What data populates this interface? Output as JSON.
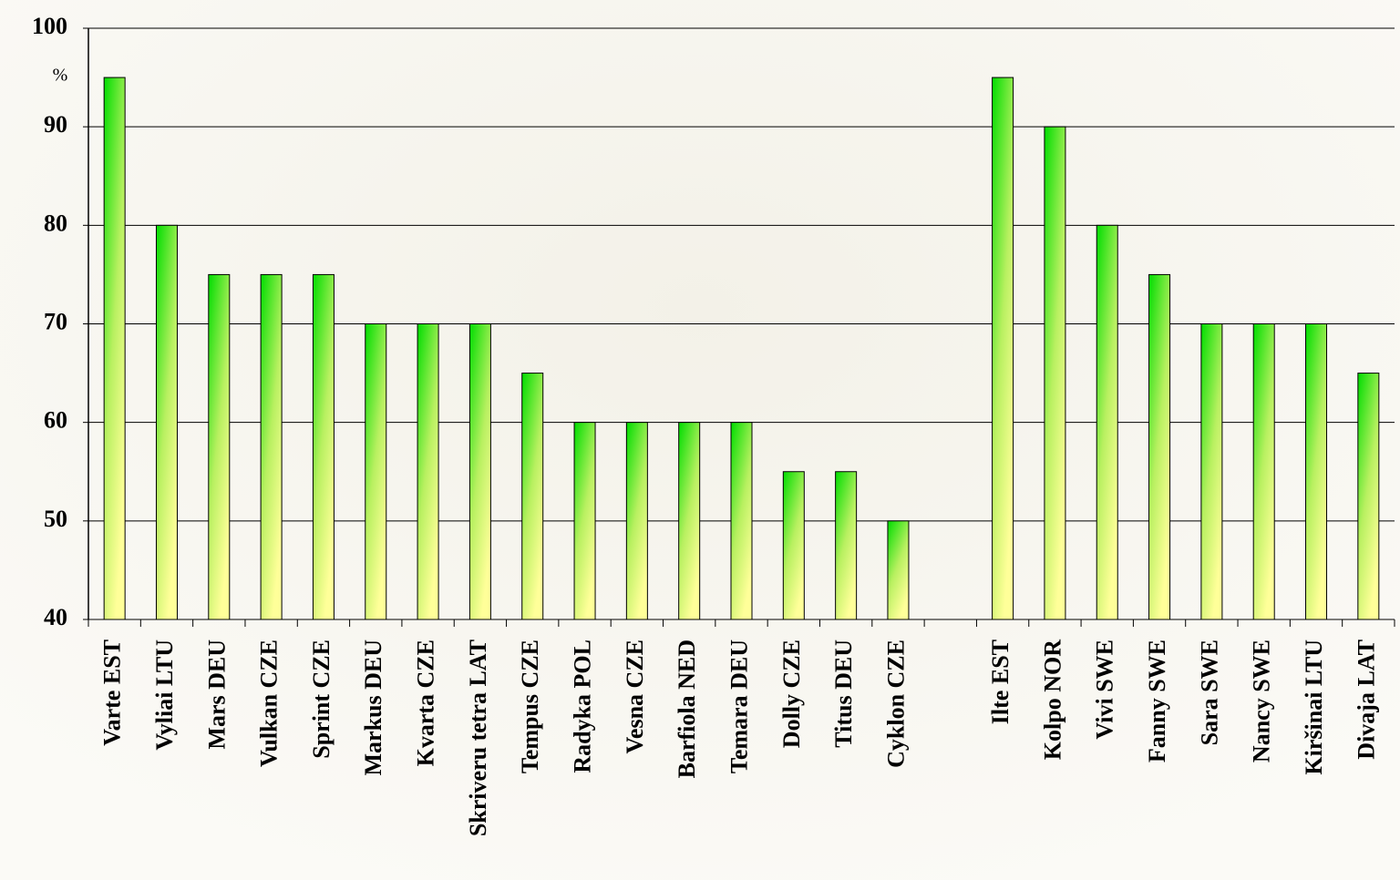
{
  "chart_data": {
    "type": "bar",
    "ylabel": "%",
    "categories": [
      "Varte EST",
      "Vyliai LTU",
      "Mars DEU",
      "Vulkan CZE",
      "Sprint CZE",
      "Markus DEU",
      "Kvarta CZE",
      "Skriveru tetra LAT",
      "Tempus CZE",
      "Radyka POL",
      "Vesna CZE",
      "Barfiola NED",
      "Temara DEU",
      "Dolly CZE",
      "Titus DEU",
      "Cyklon CZE",
      null,
      "Ilte EST",
      "Kolpo NOR",
      "Vivi SWE",
      "Fanny SWE",
      "Sara SWE",
      "Nancy SWE",
      "Kiršinai LTU",
      "Divaja LAT"
    ],
    "values": [
      95,
      80,
      75,
      75,
      75,
      70,
      70,
      70,
      65,
      60,
      60,
      60,
      60,
      55,
      55,
      50,
      null,
      95,
      90,
      80,
      75,
      70,
      70,
      70,
      65
    ],
    "ylim": [
      40,
      100
    ],
    "yticks": [
      40,
      50,
      60,
      70,
      80,
      90,
      100
    ],
    "grid": true
  }
}
